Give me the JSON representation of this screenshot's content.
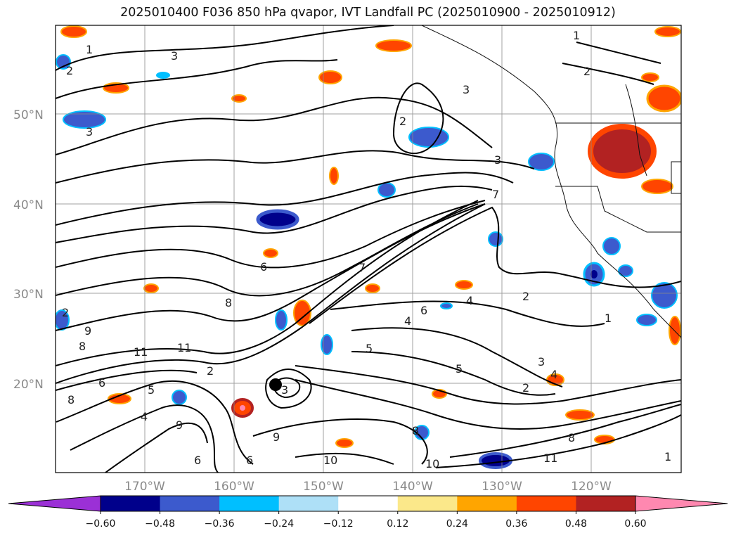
{
  "title": "2025010400 F036 850 hPa qvapor, IVT Landfall PC (2025010900 - 2025010912)",
  "map": {
    "lat_labels": [
      "50°N",
      "40°N",
      "30°N",
      "20°N"
    ],
    "lon_labels": [
      "170°W",
      "160°W",
      "150°W",
      "140°W",
      "130°W",
      "120°W"
    ],
    "lat_values": [
      50,
      40,
      30,
      20
    ],
    "lon_values": [
      -170,
      -160,
      -150,
      -140,
      -130,
      -120
    ],
    "contour_labels": [
      "1",
      "3",
      "2",
      "3",
      "2",
      "3",
      "2",
      "3",
      "1",
      "2",
      "7",
      "6",
      "7",
      "8",
      "9",
      "11",
      "11",
      "6",
      "8",
      "5",
      "6",
      "4",
      "4",
      "2",
      "1",
      "5",
      "3",
      "4",
      "2",
      "3",
      "8",
      "11",
      "10",
      "9",
      "5",
      "6",
      "1",
      "10",
      "9",
      "8",
      "6",
      "8",
      "4",
      "2"
    ]
  },
  "colorbar": {
    "tick_labels": [
      "−0.60",
      "−0.48",
      "−0.36",
      "−0.24",
      "−0.12",
      "0.12",
      "0.24",
      "0.36",
      "0.48",
      "0.60"
    ],
    "colors": [
      "#9b30d6",
      "#00008b",
      "#3c5acd",
      "#00bfff",
      "#aee0f7",
      "#ffffff",
      "#fbe88a",
      "#ffa500",
      "#ff4500",
      "#b22222",
      "#ff88b0"
    ]
  }
}
